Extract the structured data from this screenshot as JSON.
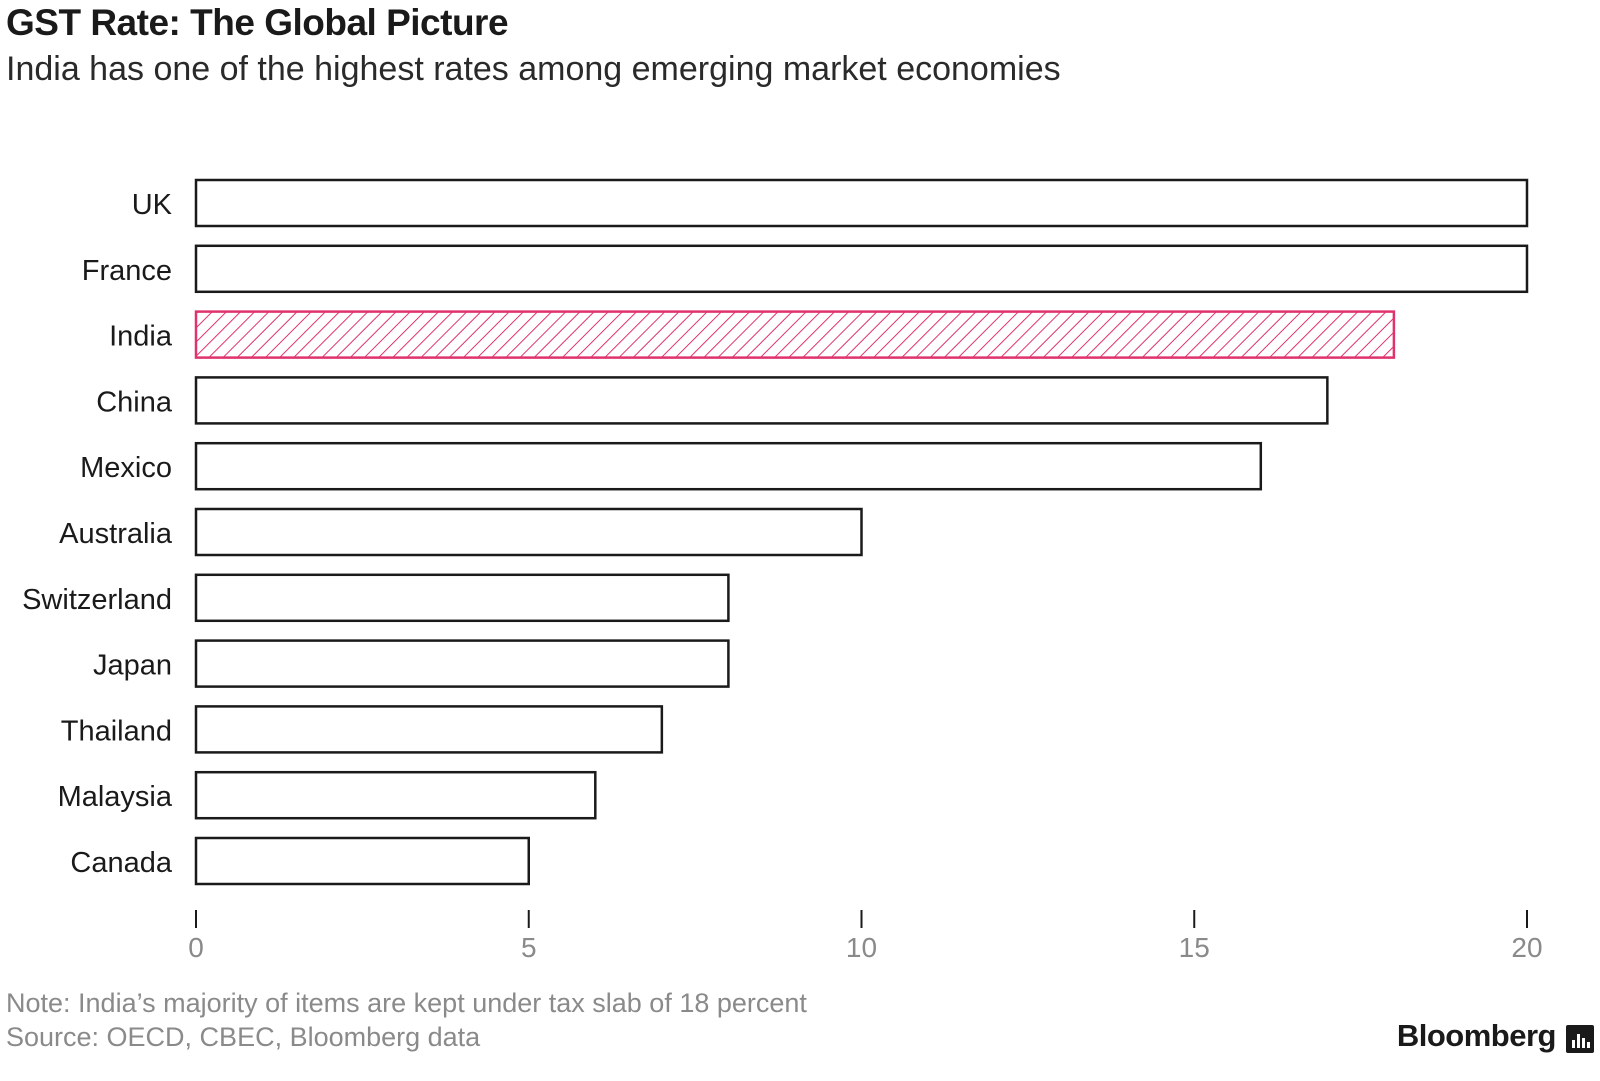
{
  "title": "GST Rate: The Global Picture",
  "subtitle": "India has one of the highest rates among emerging market economies",
  "note": "Note: India’s majority of items are kept under tax slab of 18 percent",
  "source": "Source: OECD, CBEC, Bloomberg data",
  "brand": "Bloomberg",
  "brand_icon": "bloomberg-logo-icon",
  "colors": {
    "bar_outline": "#1a1a1a",
    "highlight": "#e0336e",
    "axis_text": "#8a8a8a"
  },
  "chart_data": {
    "type": "bar",
    "orientation": "horizontal",
    "categories": [
      "UK",
      "France",
      "India",
      "China",
      "Mexico",
      "Australia",
      "Switzerland",
      "Japan",
      "Thailand",
      "Malaysia",
      "Canada"
    ],
    "values": [
      20,
      20,
      18,
      17,
      16,
      10,
      8,
      8,
      7,
      6,
      5
    ],
    "highlight": "India",
    "xlim": [
      0,
      20
    ],
    "xticks": [
      0,
      5,
      10,
      15,
      20
    ],
    "grid": false,
    "legend": "none"
  }
}
